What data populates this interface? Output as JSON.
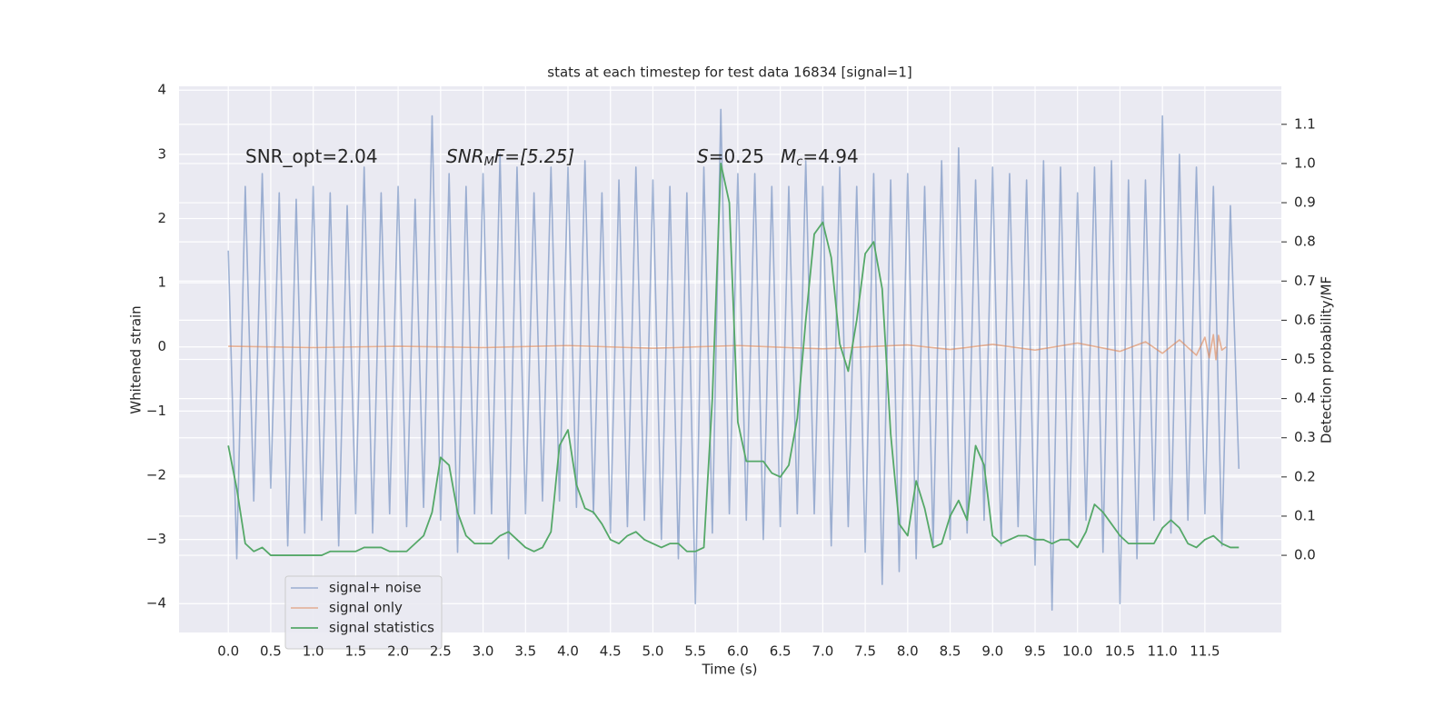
{
  "chart_data": {
    "type": "line",
    "title": "stats at each timestep for test data 16834 [signal=1]",
    "xlabel": "Time (s)",
    "ylabel": "Whitened strain",
    "y2label": "Detection probability/MF",
    "annotations": [
      [
        "SNR_opt=2.04"
      ],
      [
        "SNR",
        "M",
        "F=[5.25]"
      ],
      [
        "S",
        "=0.25"
      ],
      [
        "M",
        "c",
        "=4.94"
      ]
    ],
    "xlim": [
      -0.58,
      12.4
    ],
    "ylim": [
      -4.45,
      4.06
    ],
    "y2lim": [
      -0.197,
      1.197
    ],
    "xticks": [
      {
        "value": 0,
        "label": "0.0"
      },
      0.5,
      {
        "value": 1,
        "label": "1.0"
      },
      1.5,
      {
        "value": 2,
        "label": "2.0"
      },
      2.5,
      {
        "value": 3,
        "label": "3.0"
      },
      3.5,
      {
        "value": 4,
        "label": "4.0"
      },
      4.5,
      {
        "value": 5,
        "label": "5.0"
      },
      5.5,
      {
        "value": 6,
        "label": "6.0"
      },
      6.5,
      {
        "value": 7,
        "label": "7.0"
      },
      7.5,
      {
        "value": 8,
        "label": "8.0"
      },
      8.5,
      {
        "value": 9,
        "label": "9.0"
      },
      9.5,
      {
        "value": 10,
        "label": "10.0"
      },
      10.5,
      {
        "value": 11,
        "label": "11.0"
      },
      11.5
    ],
    "yticks": [
      {
        "value": -4,
        "label": "−4"
      },
      {
        "value": -3,
        "label": "−3"
      },
      {
        "value": -2,
        "label": "−2"
      },
      {
        "value": -1,
        "label": "−1"
      },
      0,
      1,
      2,
      3,
      4
    ],
    "y2ticks": [
      {
        "value": 0,
        "label": "0.0"
      },
      0.1,
      0.2,
      0.3,
      0.4,
      0.5,
      0.6,
      0.7,
      0.8,
      0.9,
      {
        "value": 1,
        "label": "1.0"
      },
      1.1
    ],
    "grid": true,
    "legend": "lower left",
    "x": [
      0.0,
      0.1,
      0.2,
      0.3,
      0.4,
      0.5,
      0.6,
      0.7,
      0.8,
      0.9,
      1.0,
      1.1,
      1.2,
      1.3,
      1.4,
      1.5,
      1.6,
      1.7,
      1.8,
      1.9,
      2.0,
      2.1,
      2.2,
      2.3,
      2.4,
      2.5,
      2.6,
      2.7,
      2.8,
      2.9,
      3.0,
      3.1,
      3.2,
      3.3,
      3.4,
      3.5,
      3.6,
      3.7,
      3.8,
      3.9,
      4.0,
      4.1,
      4.2,
      4.3,
      4.4,
      4.5,
      4.6,
      4.7,
      4.8,
      4.9,
      5.0,
      5.1,
      5.2,
      5.3,
      5.4,
      5.5,
      5.6,
      5.7,
      5.8,
      5.9,
      6.0,
      6.1,
      6.2,
      6.3,
      6.4,
      6.5,
      6.6,
      6.7,
      6.8,
      6.9,
      7.0,
      7.1,
      7.2,
      7.3,
      7.4,
      7.5,
      7.6,
      7.7,
      7.8,
      7.9,
      8.0,
      8.1,
      8.2,
      8.3,
      8.4,
      8.5,
      8.6,
      8.7,
      8.8,
      8.9,
      9.0,
      9.1,
      9.2,
      9.3,
      9.4,
      9.5,
      9.6,
      9.7,
      9.8,
      9.9,
      10.0,
      10.1,
      10.2,
      10.3,
      10.4,
      10.5,
      10.6,
      10.7,
      10.8,
      10.9,
      11.0,
      11.1,
      11.2,
      11.3,
      11.4,
      11.5,
      11.6,
      11.7,
      11.8,
      11.9
    ],
    "series": [
      {
        "name": "signal+ noise",
        "color": "#4c72b0",
        "values": [
          1.5,
          -3.3,
          2.5,
          -2.4,
          2.7,
          -2.2,
          2.4,
          -3.1,
          2.3,
          -2.9,
          2.5,
          -2.7,
          2.4,
          -3.1,
          2.2,
          -2.6,
          2.8,
          -2.9,
          2.4,
          -2.6,
          2.5,
          -2.8,
          2.3,
          -2.5,
          3.6,
          -2.7,
          2.7,
          -3.2,
          2.5,
          -2.6,
          2.7,
          -2.6,
          3.0,
          -3.3,
          2.8,
          -2.6,
          2.4,
          -2.4,
          2.8,
          -2.4,
          2.8,
          -2.5,
          2.9,
          -2.6,
          2.4,
          -2.9,
          2.6,
          -2.8,
          2.8,
          -2.7,
          2.6,
          -3.0,
          2.5,
          -3.3,
          2.4,
          -4.0,
          2.8,
          -2.9,
          3.7,
          -2.6,
          2.7,
          -2.7,
          2.7,
          -3.0,
          2.5,
          -2.8,
          2.5,
          -2.6,
          2.9,
          -2.6,
          2.5,
          -3.1,
          2.8,
          -2.8,
          2.5,
          -3.2,
          2.7,
          -3.7,
          2.6,
          -3.5,
          2.7,
          -3.3,
          2.5,
          -3.1,
          2.9,
          -3.0,
          3.1,
          -2.9,
          2.6,
          -2.7,
          2.8,
          -3.1,
          2.7,
          -2.8,
          2.6,
          -3.4,
          2.9,
          -4.1,
          2.8,
          -3.0,
          2.4,
          -2.7,
          2.8,
          -3.2,
          2.9,
          -4.0,
          2.6,
          -3.3,
          2.6,
          -2.7,
          3.6,
          -2.9,
          3.0,
          -2.7,
          2.8,
          -2.6,
          2.5,
          -3.1,
          2.2,
          -1.9
        ]
      },
      {
        "name": "signal only",
        "color": "#dd8452",
        "x": [
          0,
          1,
          2,
          3,
          4,
          5,
          6,
          7,
          8,
          8.5,
          9,
          9.5,
          10,
          10.5,
          10.8,
          11,
          11.2,
          11.4,
          11.5,
          11.55,
          11.6,
          11.63,
          11.66,
          11.7,
          11.75
        ],
        "values": [
          0.01,
          -0.01,
          0.01,
          -0.01,
          0.02,
          -0.02,
          0.02,
          -0.03,
          0.03,
          -0.04,
          0.04,
          -0.05,
          0.06,
          -0.07,
          0.08,
          -0.1,
          0.11,
          -0.13,
          0.15,
          -0.17,
          0.19,
          -0.2,
          0.18,
          -0.05,
          0.0
        ]
      },
      {
        "name": "signal statistics",
        "color": "#55a868",
        "axis": "y2",
        "values": [
          0.28,
          0.17,
          0.03,
          0.01,
          0.02,
          0.0,
          0.0,
          0.0,
          0.0,
          0.0,
          0.0,
          0.0,
          0.01,
          0.01,
          0.01,
          0.01,
          0.02,
          0.02,
          0.02,
          0.01,
          0.01,
          0.01,
          0.03,
          0.05,
          0.11,
          0.25,
          0.23,
          0.11,
          0.05,
          0.03,
          0.03,
          0.03,
          0.05,
          0.06,
          0.04,
          0.02,
          0.01,
          0.02,
          0.06,
          0.28,
          0.32,
          0.18,
          0.12,
          0.11,
          0.08,
          0.04,
          0.03,
          0.05,
          0.06,
          0.04,
          0.03,
          0.02,
          0.03,
          0.03,
          0.01,
          0.01,
          0.02,
          0.4,
          1.0,
          0.9,
          0.34,
          0.24,
          0.24,
          0.24,
          0.21,
          0.2,
          0.23,
          0.35,
          0.6,
          0.82,
          0.85,
          0.76,
          0.54,
          0.47,
          0.6,
          0.77,
          0.8,
          0.68,
          0.31,
          0.08,
          0.05,
          0.19,
          0.12,
          0.02,
          0.03,
          0.1,
          0.14,
          0.09,
          0.28,
          0.23,
          0.05,
          0.03,
          0.04,
          0.05,
          0.05,
          0.04,
          0.04,
          0.03,
          0.04,
          0.04,
          0.02,
          0.06,
          0.13,
          0.11,
          0.08,
          0.05,
          0.03,
          0.03,
          0.03,
          0.03,
          0.07,
          0.09,
          0.07,
          0.03,
          0.02,
          0.04,
          0.05,
          0.03,
          0.02,
          0.02
        ]
      }
    ]
  }
}
